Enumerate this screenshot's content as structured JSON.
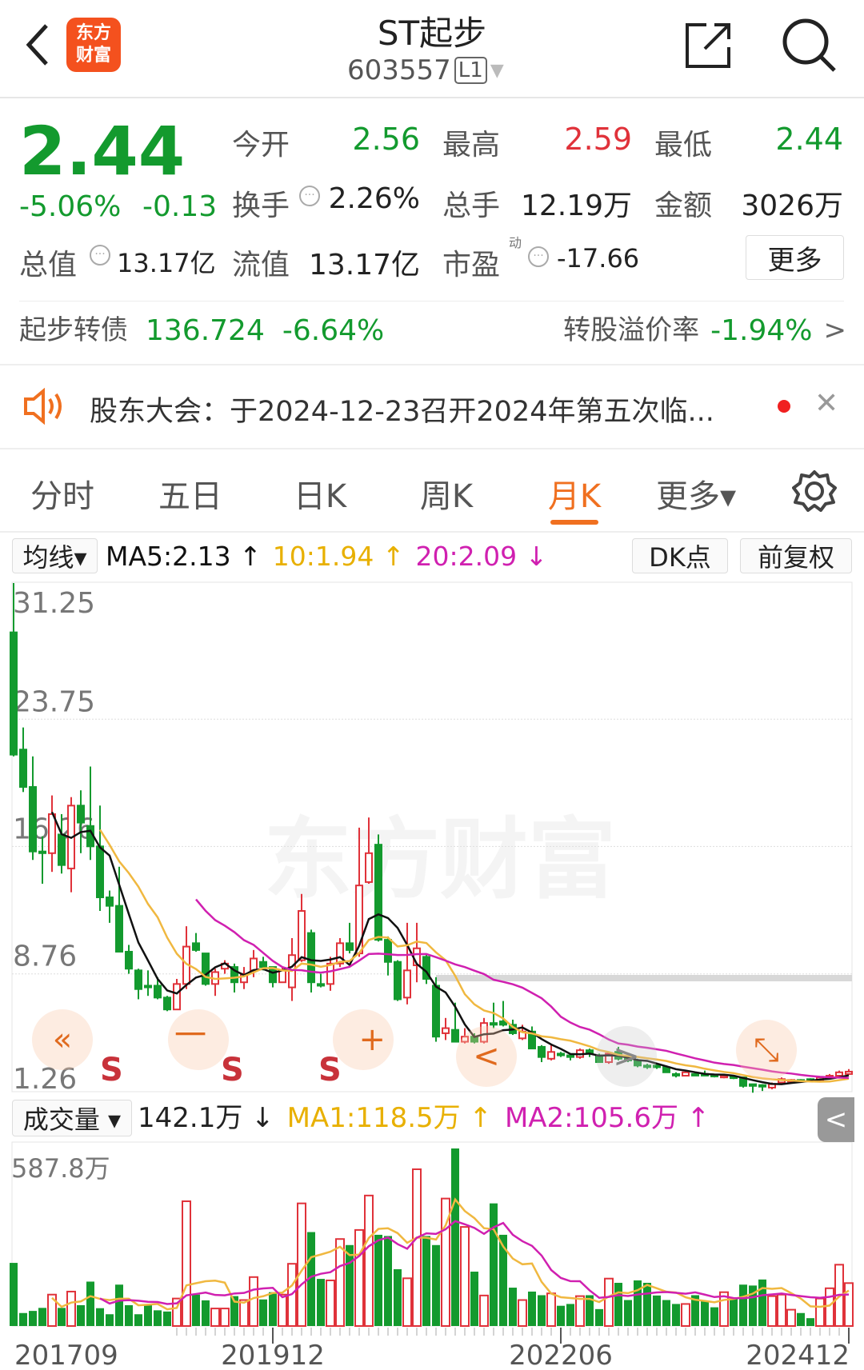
{
  "header": {
    "title": "ST起步",
    "code": "603557",
    "level": "L1",
    "logo_text": [
      "东方",
      "财富"
    ],
    "back_icon": "chevron-left-icon",
    "share_icon": "share-icon",
    "search_icon": "search-icon"
  },
  "quote": {
    "price": "2.44",
    "change_pct": "-5.06%",
    "change": "-0.13",
    "open_label": "今开",
    "open": "2.56",
    "high_label": "最高",
    "high": "2.59",
    "low_label": "最低",
    "low": "2.44",
    "turnover_label": "换手",
    "turnover": "2.26%",
    "volume_label": "总手",
    "volume": "12.19万",
    "amount_label": "金额",
    "amount": "3026万",
    "mcap_label": "总值",
    "mcap": "13.17亿",
    "float_label": "流值",
    "float": "13.17亿",
    "pe_label": "市盈",
    "pe_sup": "动",
    "pe": "-17.66",
    "more_button": "更多"
  },
  "bond": {
    "name": "起步转债",
    "price": "136.724",
    "change": "-6.64%",
    "premium_label": "转股溢价率",
    "premium": "-1.94%",
    "arrow": ">"
  },
  "notice": {
    "text": "股东大会：于2024-12-23召开2024年第五次临...",
    "close": "✕"
  },
  "tabs": [
    {
      "label": "分时"
    },
    {
      "label": "五日"
    },
    {
      "label": "日K"
    },
    {
      "label": "周K"
    },
    {
      "label": "月K",
      "active": true
    },
    {
      "label": "更多▾"
    }
  ],
  "ma_bar": {
    "selector": "均线▾",
    "ma5": "MA5:2.13 ↑",
    "ma10": "10:1.94 ↑",
    "ma20": "20:2.09 ↓",
    "dk": "DK点",
    "adjust": "前复权"
  },
  "badges": {
    "prev": "«",
    "s1": "S",
    "minus": "一",
    "s2": "S",
    "s3": "S",
    "plus": "+",
    "left": "<",
    "right": ">",
    "expand": "⤡"
  },
  "watermark": "东方财富",
  "volume_bar": {
    "selector": "成交量 ▾",
    "value": "142.1万 ↓",
    "ma1": "MA1:118.5万 ↑",
    "ma2": "MA2:105.6万 ↑",
    "collapse": "<"
  },
  "colors": {
    "up": "#e0323a",
    "down": "#139a2e",
    "ma5": "#111111",
    "ma10": "#f0b840",
    "ma20": "#d020b0",
    "accent": "#f07020"
  },
  "chart_data": [
    {
      "type": "candlestick",
      "period": "月K",
      "y_tick_labels": [
        "31.25",
        "23.75",
        "16.26",
        "8.76",
        "1.26"
      ],
      "ylim": [
        1.26,
        31.25
      ],
      "ma_periods": [
        5,
        10,
        20
      ],
      "candles_ohlc": [
        [
          28.3,
          31.2,
          21.0,
          21.1
        ],
        [
          21.4,
          22.7,
          18.9,
          19.2
        ],
        [
          19.2,
          21.0,
          14.9,
          15.4
        ],
        [
          15.4,
          16.3,
          13.5,
          15.3
        ],
        [
          15.3,
          18.7,
          14.2,
          17.6
        ],
        [
          16.4,
          17.6,
          14.1,
          14.6
        ],
        [
          14.4,
          18.6,
          13.0,
          18.1
        ],
        [
          18.1,
          19.0,
          15.3,
          17.1
        ],
        [
          16.9,
          20.4,
          14.9,
          15.7
        ],
        [
          15.7,
          18.1,
          11.9,
          12.7
        ],
        [
          12.7,
          13.1,
          11.2,
          12.2
        ],
        [
          12.2,
          14.5,
          9.5,
          9.5
        ],
        [
          9.5,
          9.9,
          8.2,
          8.5
        ],
        [
          8.4,
          8.5,
          6.7,
          7.3
        ],
        [
          7.5,
          8.4,
          6.9,
          7.4
        ],
        [
          7.5,
          8.0,
          6.7,
          6.8
        ],
        [
          6.8,
          6.9,
          6.0,
          6.1
        ],
        [
          6.1,
          7.9,
          6.1,
          7.6
        ],
        [
          7.6,
          11.0,
          7.3,
          9.8
        ],
        [
          10.0,
          10.6,
          9.5,
          9.6
        ],
        [
          9.4,
          9.4,
          7.5,
          7.6
        ],
        [
          7.6,
          8.5,
          6.9,
          8.3
        ],
        [
          8.5,
          9.0,
          8.2,
          8.8
        ],
        [
          8.6,
          8.8,
          7.1,
          7.7
        ],
        [
          7.7,
          8.6,
          7.3,
          8.2
        ],
        [
          8.4,
          9.6,
          8.0,
          9.1
        ],
        [
          8.9,
          9.2,
          8.4,
          8.6
        ],
        [
          8.6,
          8.6,
          7.4,
          7.7
        ],
        [
          7.7,
          8.6,
          7.7,
          8.4
        ],
        [
          7.4,
          10.3,
          6.6,
          9.3
        ],
        [
          9.0,
          12.9,
          8.9,
          11.9
        ],
        [
          10.6,
          10.8,
          7.1,
          7.7
        ],
        [
          7.6,
          8.2,
          7.4,
          7.5
        ],
        [
          7.6,
          9.2,
          7.2,
          8.8
        ],
        [
          8.8,
          10.3,
          8.6,
          10.0
        ],
        [
          10.0,
          11.2,
          9.4,
          9.6
        ],
        [
          9.4,
          16.8,
          9.2,
          13.4
        ],
        [
          13.6,
          17.4,
          13.5,
          15.3
        ],
        [
          15.8,
          16.4,
          10.1,
          10.2
        ],
        [
          10.2,
          10.4,
          8.1,
          8.9
        ],
        [
          8.9,
          9.0,
          6.6,
          6.7
        ],
        [
          6.8,
          11.2,
          6.4,
          8.4
        ],
        [
          8.7,
          11.2,
          7.7,
          9.7
        ],
        [
          9.2,
          9.4,
          7.6,
          7.9
        ],
        [
          7.5,
          8.0,
          4.2,
          4.5
        ],
        [
          4.7,
          5.6,
          4.3,
          5.0
        ],
        [
          4.9,
          6.5,
          4.2,
          4.2
        ],
        [
          4.2,
          5.0,
          4.1,
          4.5
        ],
        [
          4.5,
          4.7,
          4.1,
          4.2
        ],
        [
          4.2,
          5.6,
          4.1,
          5.3
        ],
        [
          5.3,
          6.5,
          5.0,
          5.2
        ],
        [
          5.4,
          6.6,
          5.1,
          5.2
        ],
        [
          5.2,
          5.5,
          4.6,
          4.7
        ],
        [
          4.4,
          5.2,
          4.3,
          4.8
        ],
        [
          4.8,
          5.1,
          3.8,
          3.8
        ],
        [
          3.9,
          4.0,
          3.0,
          3.3
        ],
        [
          3.2,
          4.0,
          3.1,
          3.6
        ],
        [
          3.5,
          3.6,
          3.3,
          3.4
        ],
        [
          3.4,
          3.5,
          3.1,
          3.3
        ],
        [
          3.3,
          3.8,
          3.2,
          3.7
        ],
        [
          3.7,
          3.8,
          3.3,
          3.5
        ],
        [
          3.4,
          3.5,
          3.0,
          3.0
        ],
        [
          3.0,
          3.5,
          2.9,
          3.5
        ],
        [
          3.6,
          3.9,
          3.1,
          3.2
        ],
        [
          3.2,
          3.3,
          3.0,
          3.1
        ],
        [
          3.1,
          3.2,
          2.7,
          2.8
        ],
        [
          2.8,
          2.9,
          2.6,
          2.77
        ],
        [
          2.8,
          2.85,
          2.6,
          2.7
        ],
        [
          2.7,
          2.8,
          2.4,
          2.4
        ],
        [
          2.3,
          2.4,
          2.1,
          2.25
        ],
        [
          2.2,
          2.5,
          2.2,
          2.4
        ],
        [
          2.3,
          2.4,
          2.2,
          2.25
        ],
        [
          2.3,
          2.5,
          2.2,
          2.25
        ],
        [
          2.25,
          2.3,
          2.1,
          2.2
        ],
        [
          2.1,
          2.3,
          2.05,
          2.2
        ],
        [
          2.15,
          2.2,
          2.0,
          2.1
        ],
        [
          2.1,
          2.1,
          1.5,
          1.6
        ],
        [
          1.7,
          1.7,
          1.2,
          1.6
        ],
        [
          1.65,
          1.7,
          1.3,
          1.6
        ],
        [
          1.5,
          1.8,
          1.4,
          1.7
        ],
        [
          1.8,
          2.1,
          1.7,
          2.0
        ],
        [
          1.9,
          2.0,
          1.8,
          1.95
        ],
        [
          1.95,
          2.0,
          1.8,
          1.9
        ],
        [
          2.0,
          2.05,
          1.9,
          1.95
        ],
        [
          1.95,
          2.15,
          1.9,
          2.1
        ],
        [
          2.1,
          2.3,
          2.0,
          2.2
        ],
        [
          2.2,
          2.5,
          2.1,
          2.4
        ],
        [
          2.3,
          2.59,
          2.25,
          2.44
        ]
      ]
    },
    {
      "type": "bar",
      "title": "成交量",
      "unit": "万",
      "y_tick_labels": [
        "587.8万"
      ],
      "ylim": [
        0,
        587.8
      ],
      "ma_periods": [
        5,
        10
      ],
      "x_tick_labels": [
        "201709",
        "201912",
        "202206",
        "202412"
      ],
      "values": [
        209,
        43,
        50,
        60,
        104,
        60,
        114,
        69,
        147,
        59,
        39,
        137,
        69,
        39,
        69,
        52,
        48,
        91,
        413,
        104,
        85,
        58,
        58,
        99,
        86,
        162,
        88,
        112,
        104,
        206,
        406,
        311,
        156,
        151,
        288,
        268,
        318,
        432,
        302,
        298,
        188,
        158,
        519,
        298,
        268,
        422,
        587.8,
        328,
        180,
        101,
        406,
        302,
        127,
        86,
        114,
        102,
        108,
        67,
        73,
        99,
        102,
        56,
        157,
        143,
        86,
        151,
        143,
        101,
        86,
        73,
        73,
        102,
        82,
        62,
        112,
        91,
        137,
        134,
        154,
        99,
        104,
        54,
        43,
        26,
        91,
        125,
        203,
        142.1
      ]
    }
  ]
}
